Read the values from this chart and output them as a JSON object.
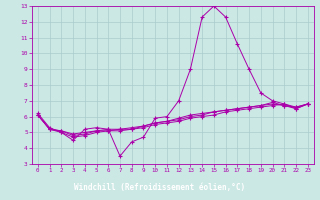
{
  "xlabel": "Windchill (Refroidissement éolien,°C)",
  "x_ticks": [
    0,
    1,
    2,
    3,
    4,
    5,
    6,
    7,
    8,
    9,
    10,
    11,
    12,
    13,
    14,
    15,
    16,
    17,
    18,
    19,
    20,
    21,
    22,
    23
  ],
  "ylim": [
    3,
    13
  ],
  "yticks": [
    3,
    4,
    5,
    6,
    7,
    8,
    9,
    10,
    11,
    12,
    13
  ],
  "background_color": "#cce8e4",
  "grid_color": "#aacccc",
  "line_color": "#aa00aa",
  "xlabel_bg": "#6600aa",
  "xlabel_fg": "#ffffff",
  "line1_y": [
    6.2,
    5.3,
    5.0,
    4.5,
    5.2,
    5.3,
    5.2,
    3.5,
    4.4,
    4.7,
    5.9,
    6.0,
    7.0,
    9.0,
    12.3,
    13.0,
    12.3,
    10.6,
    9.0,
    7.5,
    7.0,
    6.8,
    6.5,
    6.8
  ],
  "line2_y": [
    6.1,
    5.2,
    5.1,
    4.9,
    5.0,
    5.1,
    5.2,
    5.2,
    5.3,
    5.4,
    5.6,
    5.7,
    5.8,
    6.0,
    6.1,
    6.3,
    6.4,
    6.5,
    6.6,
    6.7,
    6.9,
    6.7,
    6.6,
    6.8
  ],
  "line3_y": [
    6.1,
    5.2,
    5.0,
    4.7,
    4.8,
    5.0,
    5.1,
    5.1,
    5.2,
    5.3,
    5.5,
    5.6,
    5.7,
    5.9,
    6.0,
    6.1,
    6.3,
    6.4,
    6.5,
    6.6,
    6.7,
    6.8,
    6.6,
    6.8
  ],
  "line4_y": [
    6.1,
    5.2,
    5.1,
    4.8,
    4.9,
    5.1,
    5.1,
    5.2,
    5.2,
    5.4,
    5.6,
    5.7,
    5.9,
    6.1,
    6.2,
    6.3,
    6.4,
    6.5,
    6.6,
    6.7,
    6.8,
    6.7,
    6.5,
    6.8
  ]
}
